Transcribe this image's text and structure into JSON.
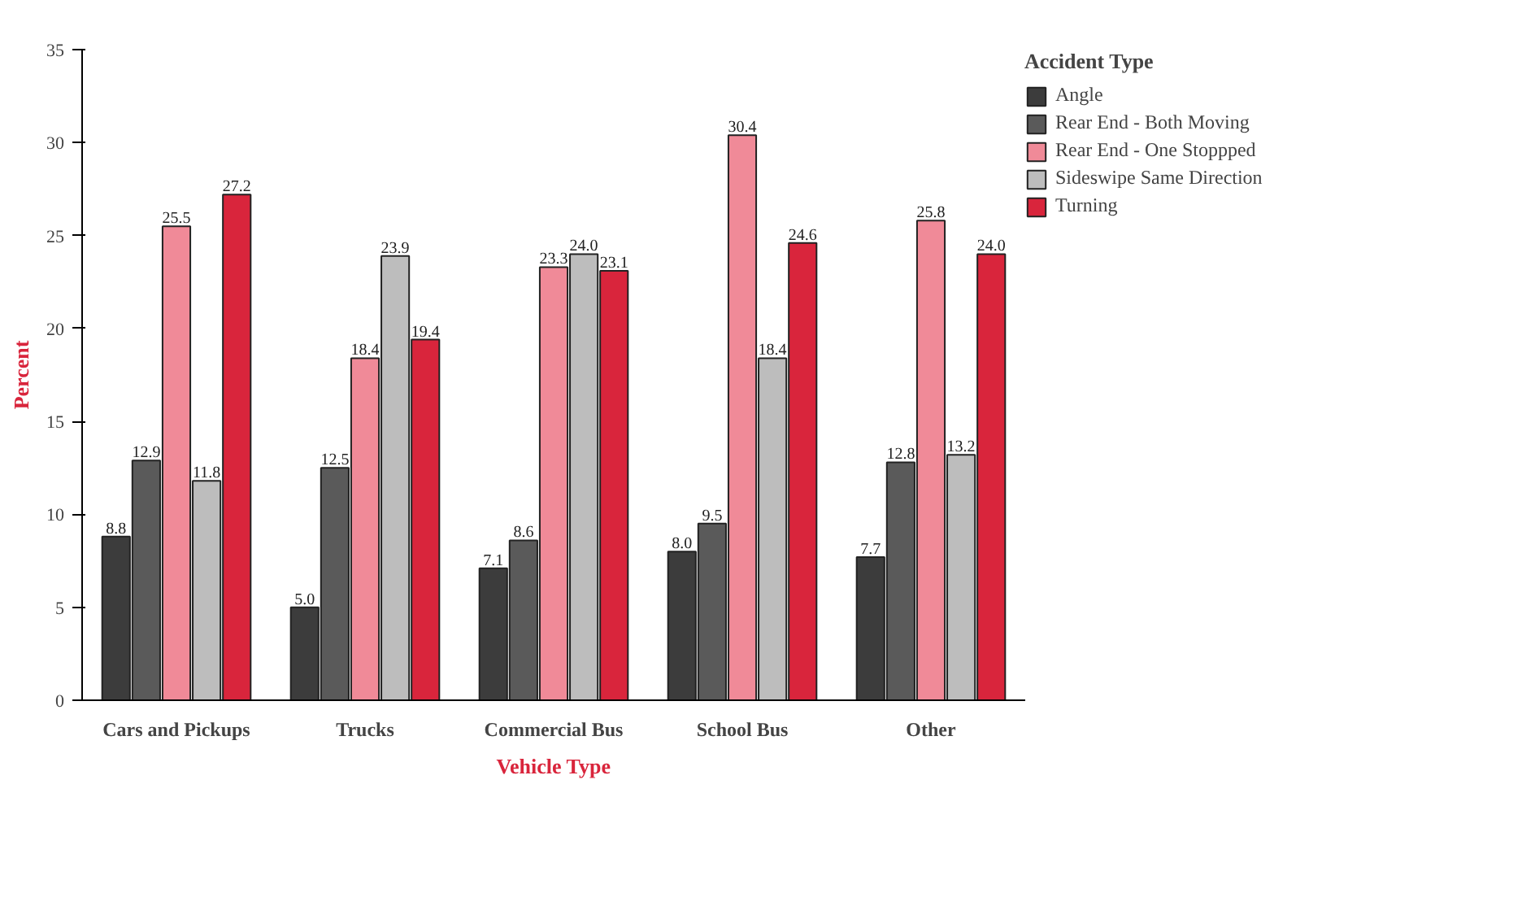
{
  "chart_data": {
    "type": "bar",
    "xlabel": "Vehicle Type",
    "ylabel": "Percent",
    "legend_title": "Accident Type",
    "categories": [
      "Cars and Pickups",
      "Trucks",
      "Commercial Bus",
      "School Bus",
      "Other"
    ],
    "series": [
      {
        "name": "Angle",
        "color": "#3c3c3c",
        "values": [
          8.8,
          5.0,
          7.1,
          8.0,
          7.7
        ],
        "value_labels": [
          "8.8",
          "5.0",
          "7.1",
          "8.0",
          "7.7"
        ]
      },
      {
        "name": "Rear End - Both Moving",
        "color": "#5a5a5a",
        "values": [
          12.9,
          12.5,
          8.6,
          9.5,
          12.8
        ],
        "value_labels": [
          "12.9",
          "12.5",
          "8.6",
          "9.5",
          "12.8"
        ]
      },
      {
        "name": "Rear End - One Stoppped",
        "color": "#f08a98",
        "values": [
          25.5,
          18.4,
          23.3,
          30.4,
          25.8
        ],
        "value_labels": [
          "25.5",
          "18.4",
          "23.3",
          "30.4",
          "25.8"
        ]
      },
      {
        "name": "Sideswipe Same Direction",
        "color": "#bdbdbd",
        "values": [
          11.8,
          23.9,
          24.0,
          18.4,
          13.2
        ],
        "value_labels": [
          "11.8",
          "23.9",
          "24.0",
          "18.4",
          "13.2"
        ]
      },
      {
        "name": "Turning",
        "color": "#d9253c",
        "values": [
          27.2,
          19.4,
          23.1,
          24.6,
          24.0
        ],
        "value_labels": [
          "27.2",
          "19.4",
          "23.1",
          "24.6",
          "24.0"
        ]
      }
    ],
    "ylim": [
      0,
      35
    ],
    "yticks": [
      0,
      5,
      10,
      15,
      20,
      25,
      30,
      35
    ],
    "grid": false,
    "legend": "top right"
  }
}
